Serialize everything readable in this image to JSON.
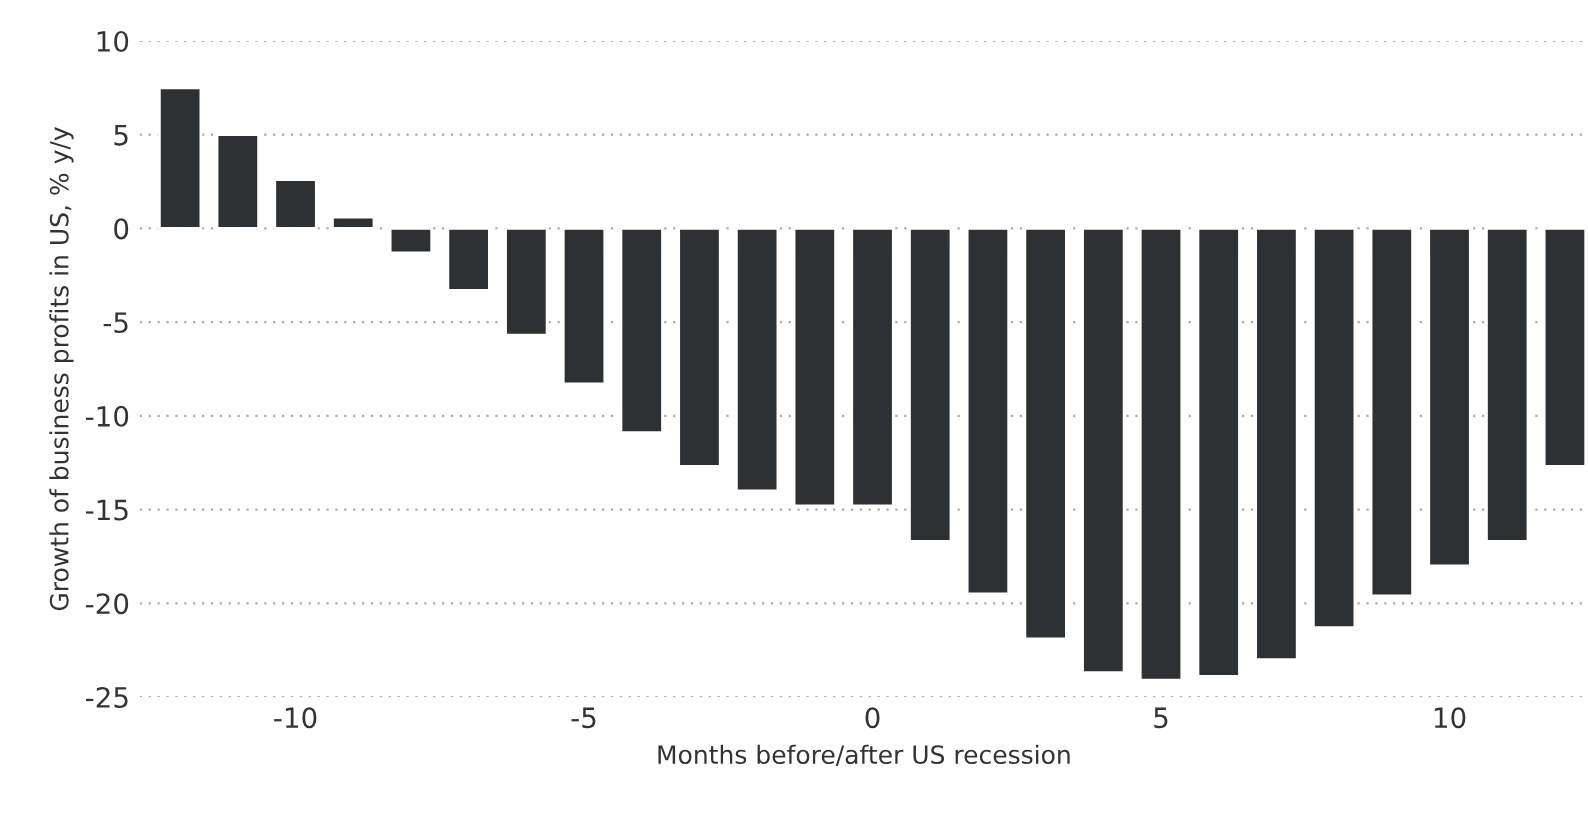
{
  "chart_data": {
    "type": "bar",
    "xlabel": "Months before/after US recession",
    "ylabel": "Growth of business profits in US, % y/y",
    "x": [
      -12,
      -11,
      -10,
      -9,
      -8,
      -7,
      -6,
      -5,
      -4,
      -3,
      -2,
      -1,
      0,
      1,
      2,
      3,
      4,
      5,
      6,
      7,
      8,
      9,
      10,
      11,
      12
    ],
    "values": [
      7.5,
      5.0,
      2.6,
      0.6,
      -1.3,
      -3.3,
      -5.7,
      -8.3,
      -10.9,
      -12.7,
      -14.0,
      -14.8,
      -14.8,
      -16.7,
      -19.5,
      -21.9,
      -23.7,
      -24.1,
      -23.9,
      -23.0,
      -21.3,
      -19.6,
      -18.0,
      -16.7,
      -12.7
    ],
    "color": "#2d3134",
    "xlim": [
      -12.7,
      12.4
    ],
    "xticks": [
      -10,
      -5,
      0,
      5,
      10
    ],
    "ylim": [
      -25,
      10
    ],
    "yticks": [
      -25,
      -20,
      -15,
      -10,
      -5,
      0,
      5,
      10
    ],
    "grid": "y"
  }
}
